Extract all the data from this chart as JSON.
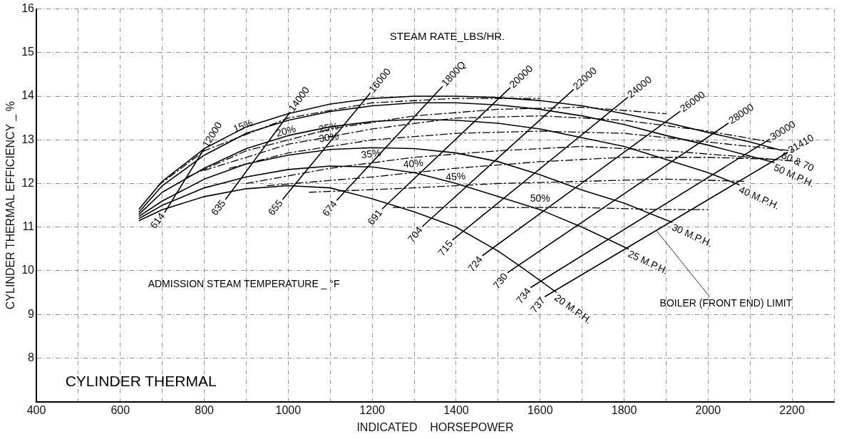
{
  "chart_data": {
    "type": "line",
    "xlabel": "INDICATED    HORSEPOWER",
    "ylabel": "CYLINDER THERMAL EFFICIENCY _ %",
    "xlim": [
      400,
      2300
    ],
    "ylim": [
      7,
      16
    ],
    "xticks": [
      400,
      {
        "value": 500,
        "label": null
      },
      600,
      {
        "value": 700,
        "label": null
      },
      800,
      {
        "value": 900,
        "label": null
      },
      1000,
      {
        "value": 1100,
        "label": null
      },
      1200,
      {
        "value": 1300,
        "label": null
      },
      1400,
      {
        "value": 1500,
        "label": null
      },
      1600,
      {
        "value": 1700,
        "label": null
      },
      1800,
      {
        "value": 1900,
        "label": null
      },
      2000,
      {
        "value": 2100,
        "label": null
      },
      2200,
      {
        "value": 2300,
        "label": null
      }
    ],
    "yticks": [
      {
        "value": 7,
        "label": null
      },
      8,
      9,
      10,
      11,
      12,
      13,
      14,
      15,
      16
    ],
    "grid": true,
    "legend": false,
    "marker": "none",
    "series": [
      {
        "name": "60 & 70",
        "color": "#000000",
        "line_style": "solid",
        "x": [
          645,
          700,
          800,
          900,
          1000,
          1100,
          1200,
          1300,
          1400,
          1500,
          1600,
          1700,
          1800,
          1900,
          2000,
          2100,
          2175
        ],
        "values": [
          11.42,
          12.05,
          12.8,
          13.3,
          13.6,
          13.82,
          13.95,
          14.0,
          14.0,
          13.97,
          13.9,
          13.78,
          13.6,
          13.4,
          13.17,
          12.95,
          12.76
        ]
      },
      {
        "name": "50 M.P.H.",
        "color": "#000000",
        "line_style": "solid",
        "x": [
          645,
          700,
          800,
          900,
          1000,
          1100,
          1200,
          1300,
          1400,
          1500,
          1600,
          1700,
          1800,
          1900,
          2000,
          2100,
          2157
        ],
        "values": [
          11.35,
          11.95,
          12.65,
          13.15,
          13.45,
          13.65,
          13.78,
          13.85,
          13.85,
          13.8,
          13.7,
          13.55,
          13.35,
          13.1,
          12.88,
          12.63,
          12.48
        ]
      },
      {
        "name": "40 M.P.H.",
        "color": "#000000",
        "line_style": "solid",
        "x": [
          645,
          700,
          800,
          900,
          1000,
          1100,
          1200,
          1300,
          1400,
          1500,
          1600,
          1700,
          1800,
          1900,
          2000,
          2074
        ],
        "values": [
          11.3,
          11.8,
          12.35,
          12.8,
          13.1,
          13.3,
          13.42,
          13.47,
          13.45,
          13.38,
          13.25,
          13.05,
          12.85,
          12.55,
          12.25,
          11.97
        ]
      },
      {
        "name": "30 M.P.H.",
        "color": "#000000",
        "line_style": "solid",
        "x": [
          645,
          700,
          800,
          900,
          1000,
          1100,
          1200,
          1300,
          1400,
          1500,
          1600,
          1700,
          1800,
          1914
        ],
        "values": [
          11.25,
          11.6,
          12.1,
          12.45,
          12.65,
          12.78,
          12.82,
          12.8,
          12.7,
          12.5,
          12.2,
          11.85,
          11.55,
          11.11
        ]
      },
      {
        "name": "25 M.P.H.",
        "color": "#000000",
        "line_style": "solid",
        "x": [
          645,
          700,
          800,
          900,
          1000,
          1100,
          1200,
          1300,
          1400,
          1500,
          1600,
          1700,
          1810
        ],
        "values": [
          11.2,
          11.5,
          11.9,
          12.15,
          12.32,
          12.4,
          12.38,
          12.25,
          12.0,
          11.7,
          11.4,
          11.0,
          10.5
        ]
      },
      {
        "name": "20 M.P.H.",
        "color": "#000000",
        "line_style": "solid",
        "x": [
          645,
          700,
          800,
          900,
          1000,
          1100,
          1200,
          1300,
          1400,
          1500,
          1550,
          1638
        ],
        "values": [
          11.15,
          11.4,
          11.7,
          11.88,
          11.95,
          11.9,
          11.65,
          11.35,
          11.0,
          10.45,
          10.12,
          9.51
        ]
      },
      {
        "name": "15%",
        "color": "#000000",
        "line_style": "dashed",
        "x": [
          690,
          800,
          1000,
          1200,
          1400,
          1600
        ],
        "values": [
          11.95,
          12.75,
          13.5,
          13.85,
          13.95,
          13.95
        ]
      },
      {
        "name": "20%",
        "color": "#000000",
        "line_style": "dashed",
        "x": [
          760,
          900,
          1100,
          1300,
          1500,
          1700,
          1900
        ],
        "values": [
          12.15,
          12.75,
          13.25,
          13.55,
          13.7,
          13.75,
          13.6
        ]
      },
      {
        "name": "25%",
        "color": "#000000",
        "line_style": "dashed",
        "x": [
          800,
          1000,
          1200,
          1400,
          1600,
          1800,
          2000,
          2150
        ],
        "values": [
          12.3,
          12.9,
          13.25,
          13.5,
          13.55,
          13.45,
          13.2,
          12.95
        ]
      },
      {
        "name": "30%",
        "color": "#000000",
        "line_style": "dashed",
        "x": [
          860,
          1000,
          1200,
          1400,
          1600,
          1800,
          2000,
          2200
        ],
        "values": [
          12.35,
          12.7,
          13.0,
          13.15,
          13.2,
          13.15,
          12.95,
          12.75
        ]
      },
      {
        "name": "35%",
        "color": "#000000",
        "line_style": "dashed",
        "x": [
          900,
          1100,
          1300,
          1500,
          1700,
          1900,
          2100,
          2220
        ],
        "values": [
          12.0,
          12.35,
          12.6,
          12.75,
          12.85,
          12.75,
          12.6,
          12.5
        ]
      },
      {
        "name": "40%",
        "color": "#000000",
        "line_style": "dashed",
        "x": [
          950,
          1200,
          1400,
          1600,
          1800,
          2000,
          2170
        ],
        "values": [
          11.95,
          12.15,
          12.35,
          12.5,
          12.6,
          12.6,
          12.55
        ]
      },
      {
        "name": "45%",
        "color": "#000000",
        "line_style": "dashed",
        "x": [
          1050,
          1300,
          1500,
          1700,
          1900,
          2090
        ],
        "values": [
          11.8,
          11.9,
          12.0,
          12.05,
          12.1,
          12.05
        ]
      },
      {
        "name": "50%",
        "color": "#000000",
        "line_style": "dashed",
        "x": [
          1250,
          1500,
          1700,
          1900,
          2000
        ],
        "values": [
          11.45,
          11.45,
          11.45,
          11.4,
          11.4
        ]
      },
      {
        "name": "12000",
        "color": "#000000",
        "line_style": "solid",
        "x": [
          706,
          800
        ],
        "values": [
          11.34,
          12.8
        ]
      },
      {
        "name": "14000",
        "color": "#000000",
        "line_style": "solid",
        "x": [
          851,
          1004
        ],
        "values": [
          11.64,
          13.63
        ]
      },
      {
        "name": "16000",
        "color": "#000000",
        "line_style": "solid",
        "x": [
          987,
          1195
        ],
        "values": [
          11.64,
          14.07
        ]
      },
      {
        "name": "1800Q",
        "color": "#000000",
        "line_style": "solid",
        "x": [
          1116,
          1367
        ],
        "values": [
          11.62,
          14.22
        ]
      },
      {
        "name": "20000",
        "color": "#000000",
        "line_style": "solid",
        "x": [
          1224,
          1528
        ],
        "values": [
          11.42,
          14.19
        ]
      },
      {
        "name": "22000",
        "color": "#000000",
        "line_style": "solid",
        "x": [
          1320,
          1679
        ],
        "values": [
          11.02,
          14.15
        ]
      },
      {
        "name": "24000",
        "color": "#000000",
        "line_style": "solid",
        "x": [
          1392,
          1808
        ],
        "values": [
          10.71,
          13.97
        ]
      },
      {
        "name": "26000",
        "color": "#000000",
        "line_style": "solid",
        "x": [
          1463,
          1933
        ],
        "values": [
          10.35,
          13.65
        ]
      },
      {
        "name": "28000",
        "color": "#000000",
        "line_style": "solid",
        "x": [
          1523,
          2048
        ],
        "values": [
          9.96,
          13.38
        ]
      },
      {
        "name": "30000",
        "color": "#000000",
        "line_style": "solid",
        "x": [
          1578,
          2146
        ],
        "values": [
          9.62,
          13.01
        ]
      },
      {
        "name": "31410",
        "color": "#000000",
        "line_style": "solid",
        "x": [
          1612,
          2189
        ],
        "values": [
          9.41,
          12.71
        ]
      }
    ],
    "annotations": [
      "STEAM RATE_LBS/HR.",
      "ADMISSION STEAM TEMPERATURE _ °F",
      {
        "text": "BOILER (FRONT END) LIMIT",
        "x": 1877,
        "y": 10.92
      },
      "CYLINDER THERMAL",
      {
        "text": "614",
        "x": 706,
        "y": 11.34
      },
      {
        "text": "635",
        "x": 851,
        "y": 11.64
      },
      {
        "text": "655",
        "x": 987,
        "y": 11.64
      },
      {
        "text": "674",
        "x": 1116,
        "y": 11.62
      },
      {
        "text": "691",
        "x": 1224,
        "y": 11.42
      },
      {
        "text": "704",
        "x": 1320,
        "y": 11.02
      },
      {
        "text": "715",
        "x": 1392,
        "y": 10.71
      },
      {
        "text": "724",
        "x": 1463,
        "y": 10.35
      },
      {
        "text": "730",
        "x": 1523,
        "y": 9.96
      },
      {
        "text": "734",
        "x": 1578,
        "y": 9.62
      },
      {
        "text": "737",
        "x": 1612,
        "y": 9.41
      }
    ]
  }
}
